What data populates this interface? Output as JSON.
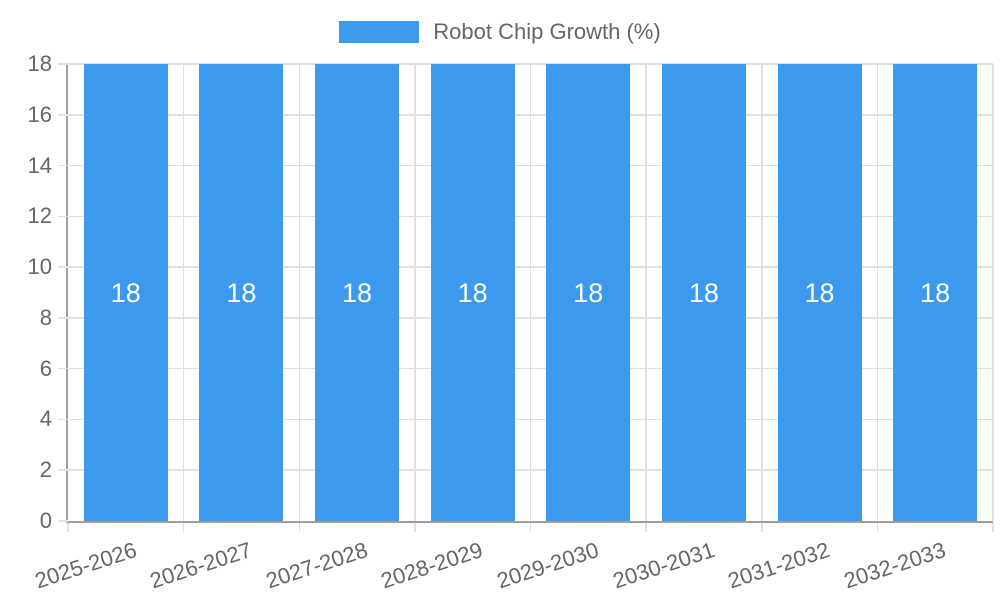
{
  "legend": {
    "label": "Robot Chip Growth (%)"
  },
  "chart_data": {
    "type": "bar",
    "title": "",
    "categories": [
      "2025-2026",
      "2026-2027",
      "2027-2028",
      "2028-2029",
      "2029-2030",
      "2030-2031",
      "2031-2032",
      "2032-2033"
    ],
    "series": [
      {
        "name": "Robot Chip Growth (%)",
        "values": [
          18,
          18,
          18,
          18,
          18,
          18,
          18,
          18
        ]
      }
    ],
    "value_labels": true,
    "xlabel": "",
    "ylabel": "",
    "ylim": [
      0,
      18
    ],
    "yticks": [
      0,
      2,
      4,
      6,
      8,
      10,
      12,
      14,
      16,
      18
    ],
    "grid": true,
    "legend_position": "top-center",
    "x_tick_rotation": -18,
    "colors": {
      "bar": "#3B99EE",
      "text": "#666666",
      "grid": "#E0E0E0",
      "axis": "#9E9E9E",
      "value_label": "#FFFFFF"
    }
  }
}
